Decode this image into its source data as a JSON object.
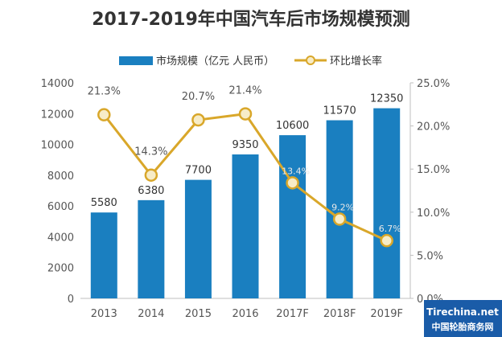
{
  "chart_data": {
    "type": "bar",
    "title": "2017-2019年中国汽车后市场规模预测",
    "categories": [
      "2013",
      "2014",
      "2015",
      "2016",
      "2017F",
      "2018F",
      "2019F"
    ],
    "series": [
      {
        "name": "市场规模（亿元 人民币）",
        "type": "bar",
        "axis": "left",
        "values": [
          5580,
          6380,
          7700,
          9350,
          10600,
          11570,
          12350
        ],
        "labels": [
          "5580",
          "6380",
          "7700",
          "9350",
          "10600",
          "11570",
          "12350"
        ]
      },
      {
        "name": "环比增长率",
        "type": "line",
        "axis": "right",
        "values": [
          21.3,
          14.3,
          20.7,
          21.4,
          13.4,
          9.2,
          6.7
        ],
        "labels": [
          "21.3%",
          "14.3%",
          "20.7%",
          "21.4%",
          "13.4%",
          "9.2%",
          "6.7%"
        ]
      }
    ],
    "y_left": {
      "range": [
        0,
        14000
      ],
      "ticks": [
        "0",
        "2000",
        "4000",
        "6000",
        "8000",
        "10000",
        "12000",
        "14000"
      ]
    },
    "y_right": {
      "range": [
        0,
        25
      ],
      "ticks": [
        "0.0%",
        "5.0%",
        "10.0%",
        "15.0%",
        "20.0%",
        "25.0%"
      ]
    },
    "legend_position": "top",
    "grid": false,
    "colors": {
      "bar": "#1a7fc0",
      "line": "#d9a72a",
      "marker_fill": "#f7ecc7",
      "marker_stroke": "#d9a72a"
    }
  },
  "watermark": {
    "site": "Tirechina.net",
    "name": "中国轮胎商务网"
  }
}
